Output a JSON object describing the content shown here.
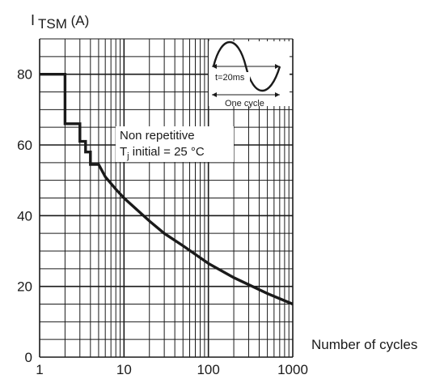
{
  "chart_data": {
    "type": "line",
    "ylabel": {
      "prefix": "I",
      "subscript": "TSM",
      "unit": " (A)"
    },
    "xlabel": "Number of cycles",
    "x_scale": "log",
    "xlim": [
      1,
      1000
    ],
    "ylim": [
      0,
      90
    ],
    "x_ticks": [
      "1",
      "10",
      "100",
      "1000"
    ],
    "y_ticks": [
      "0",
      "20",
      "40",
      "60",
      "80"
    ],
    "grid": true,
    "series": [
      {
        "values": [
          {
            "x": 1,
            "y": 80
          },
          {
            "x": 2,
            "y": 80
          },
          {
            "x": 2,
            "y": 66
          },
          {
            "x": 3,
            "y": 66
          },
          {
            "x": 3,
            "y": 61
          },
          {
            "x": 3.5,
            "y": 61
          },
          {
            "x": 3.5,
            "y": 58
          },
          {
            "x": 4,
            "y": 58
          },
          {
            "x": 4,
            "y": 54.5
          },
          {
            "x": 5,
            "y": 54.5
          },
          {
            "x": 6,
            "y": 51
          },
          {
            "x": 8,
            "y": 47.5
          },
          {
            "x": 10,
            "y": 45
          },
          {
            "x": 20,
            "y": 38.5
          },
          {
            "x": 30,
            "y": 35
          },
          {
            "x": 50,
            "y": 31.5
          },
          {
            "x": 100,
            "y": 26.5
          },
          {
            "x": 200,
            "y": 22.5
          },
          {
            "x": 500,
            "y": 18
          },
          {
            "x": 1000,
            "y": 15
          }
        ]
      }
    ],
    "annotations": {
      "line1": "Non repetitive",
      "line2_prefix": "T",
      "line2_sub": "j",
      "line2_suffix": " initial = 25 °C"
    },
    "inset": {
      "period_label": "t=20ms",
      "cycle_label": "One cycle"
    }
  }
}
